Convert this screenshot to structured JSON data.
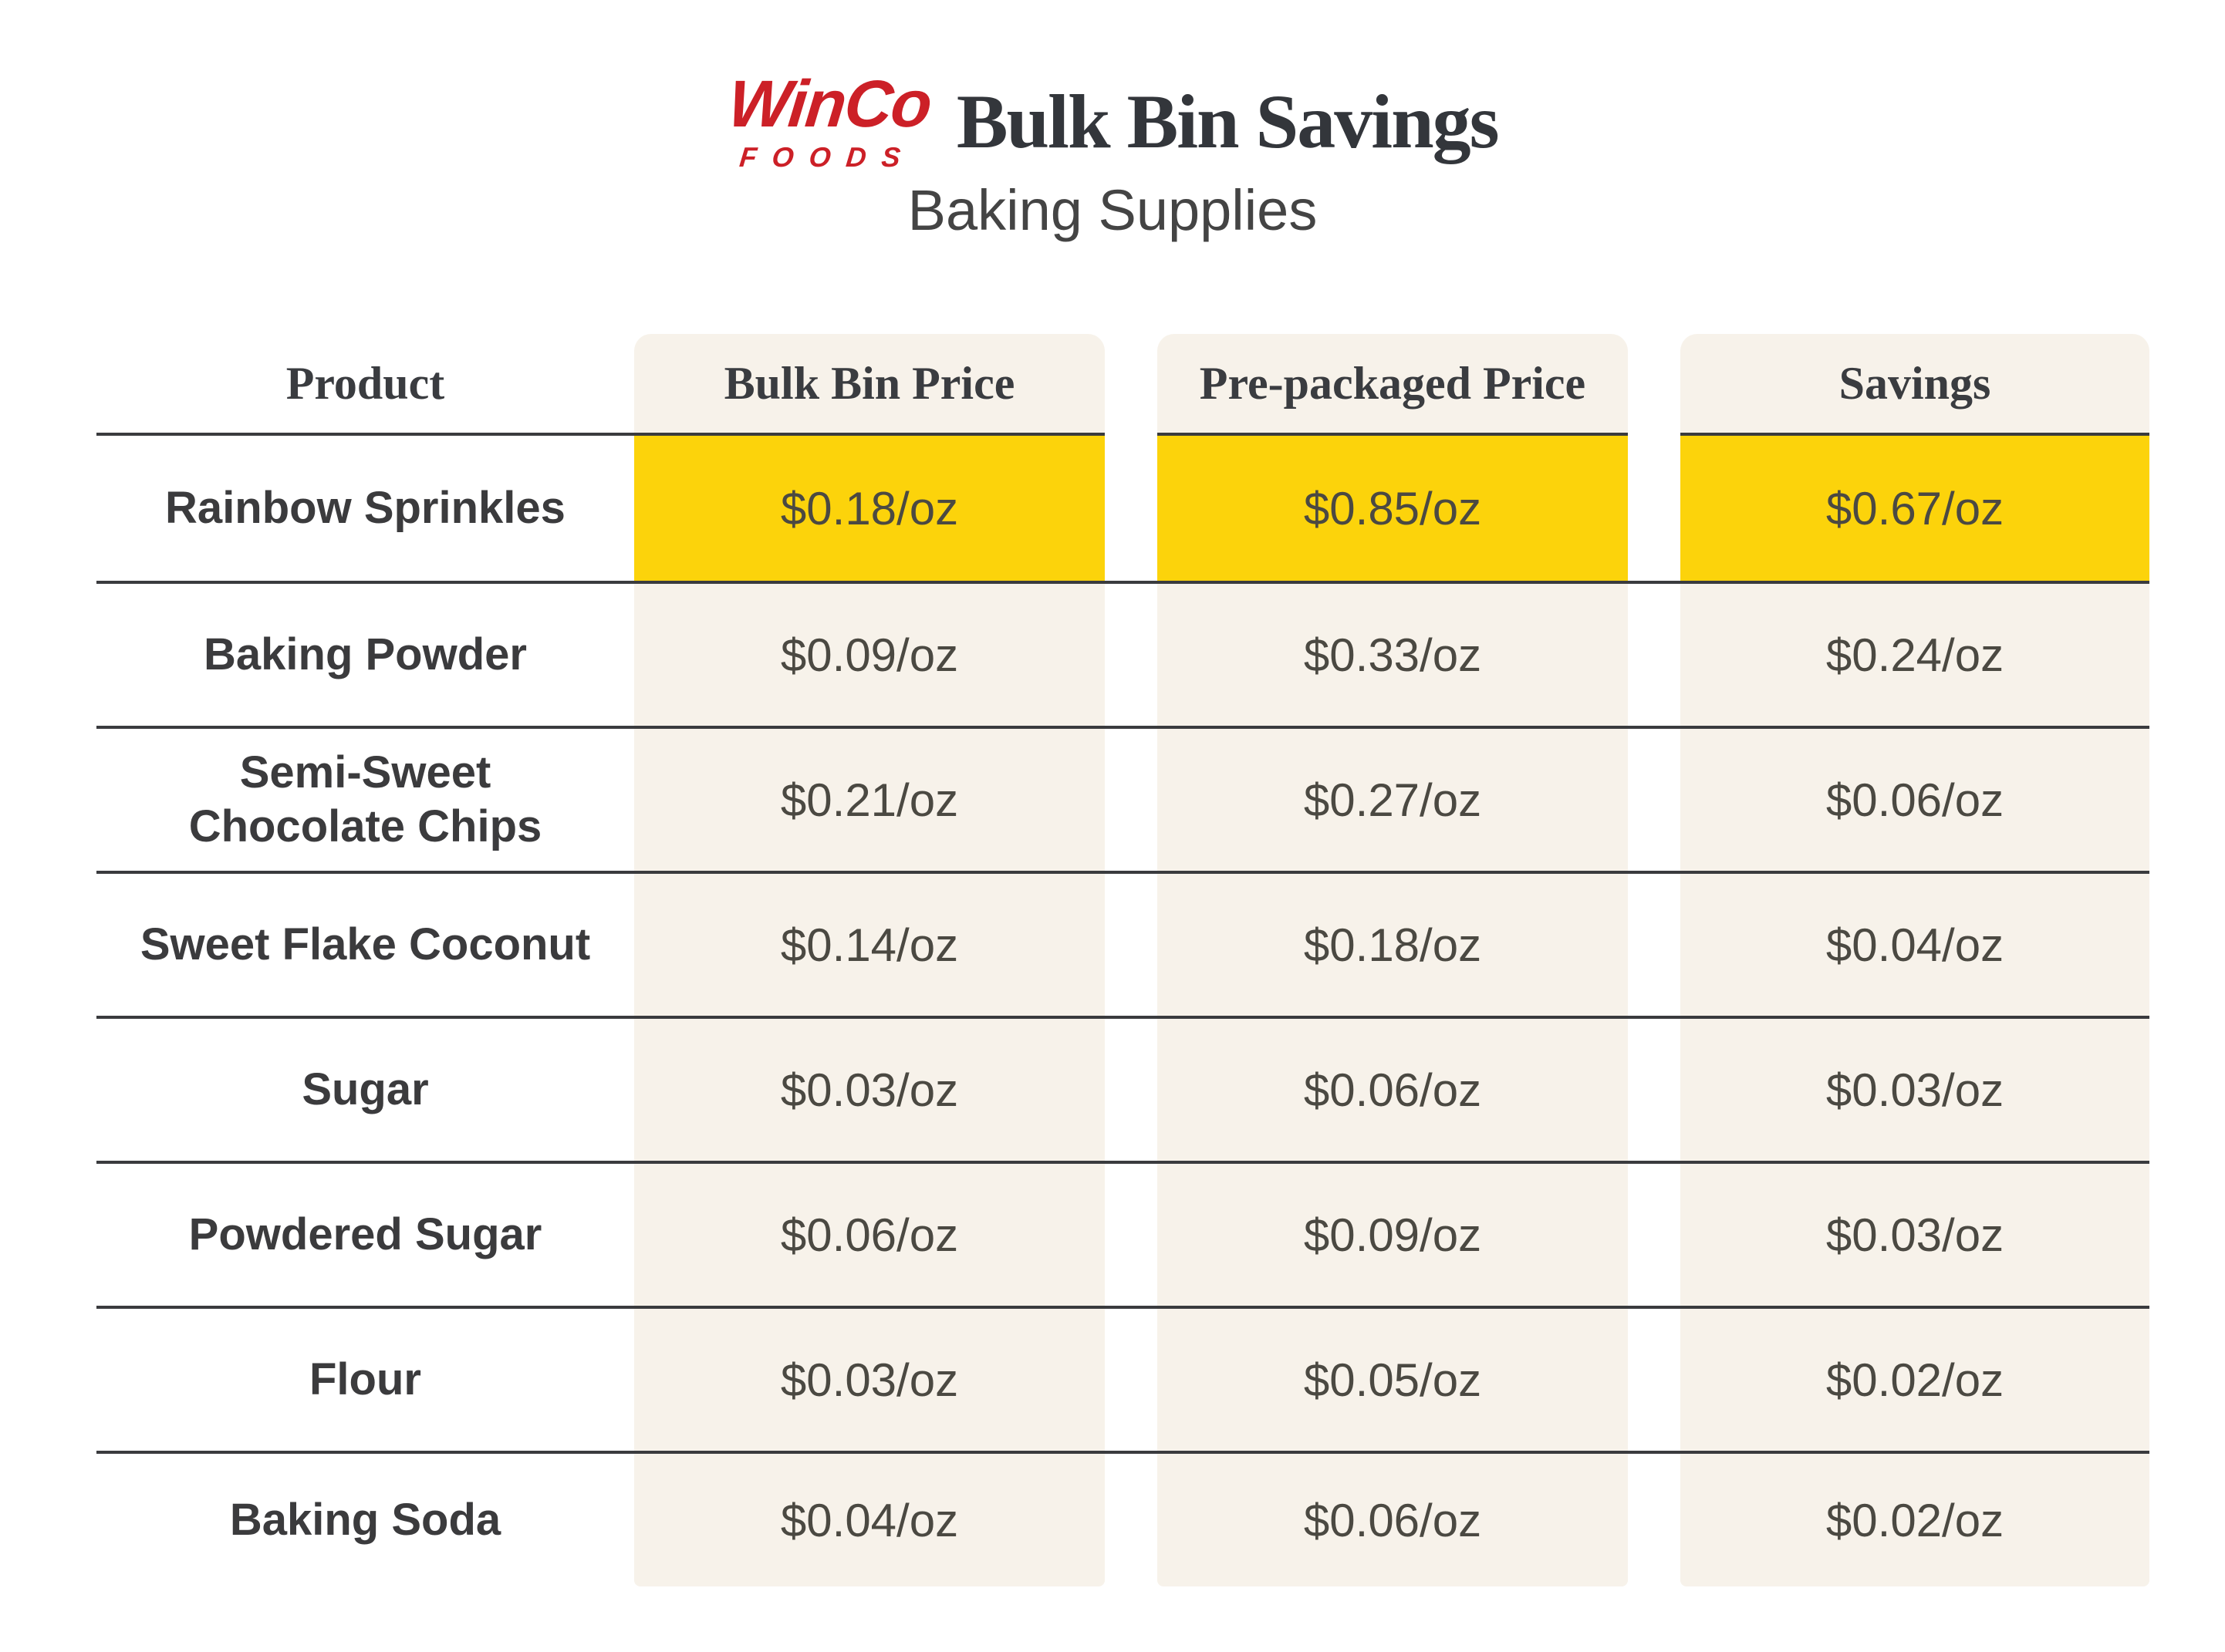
{
  "header": {
    "logo_line1": "WinCo",
    "logo_line2": "FOODS"
  },
  "chart_data": {
    "type": "table",
    "title": "Bulk Bin Savings",
    "subtitle": "Baking Supplies",
    "unit": "$/oz",
    "columns": [
      "Product",
      "Bulk Bin Price",
      "Pre-packaged Price",
      "Savings"
    ],
    "highlight_row_index": 0,
    "highlight_color": "#FCD30B",
    "rows": [
      {
        "product": "Rainbow Sprinkles",
        "bulk_bin_price": "$0.18/oz",
        "prepackaged_price": "$0.85/oz",
        "savings": "$0.67/oz"
      },
      {
        "product": "Baking Powder",
        "bulk_bin_price": "$0.09/oz",
        "prepackaged_price": "$0.33/oz",
        "savings": "$0.24/oz"
      },
      {
        "product": "Semi-Sweet\nChocolate Chips",
        "bulk_bin_price": "$0.21/oz",
        "prepackaged_price": "$0.27/oz",
        "savings": "$0.06/oz"
      },
      {
        "product": "Sweet Flake Coconut",
        "bulk_bin_price": "$0.14/oz",
        "prepackaged_price": "$0.18/oz",
        "savings": "$0.04/oz"
      },
      {
        "product": "Sugar",
        "bulk_bin_price": "$0.03/oz",
        "prepackaged_price": "$0.06/oz",
        "savings": "$0.03/oz"
      },
      {
        "product": "Powdered Sugar",
        "bulk_bin_price": "$0.06/oz",
        "prepackaged_price": "$0.09/oz",
        "savings": "$0.03/oz"
      },
      {
        "product": "Flour",
        "bulk_bin_price": "$0.03/oz",
        "prepackaged_price": "$0.05/oz",
        "savings": "$0.02/oz"
      },
      {
        "product": "Baking Soda",
        "bulk_bin_price": "$0.04/oz",
        "prepackaged_price": "$0.06/oz",
        "savings": "$0.02/oz"
      }
    ]
  },
  "colors": {
    "brand_red": "#CC2027",
    "column_background": "#F7F2EA",
    "highlight_yellow": "#FCD30B",
    "rule_line": "#3A3B3E",
    "text_dark": "#3B3B3D"
  }
}
